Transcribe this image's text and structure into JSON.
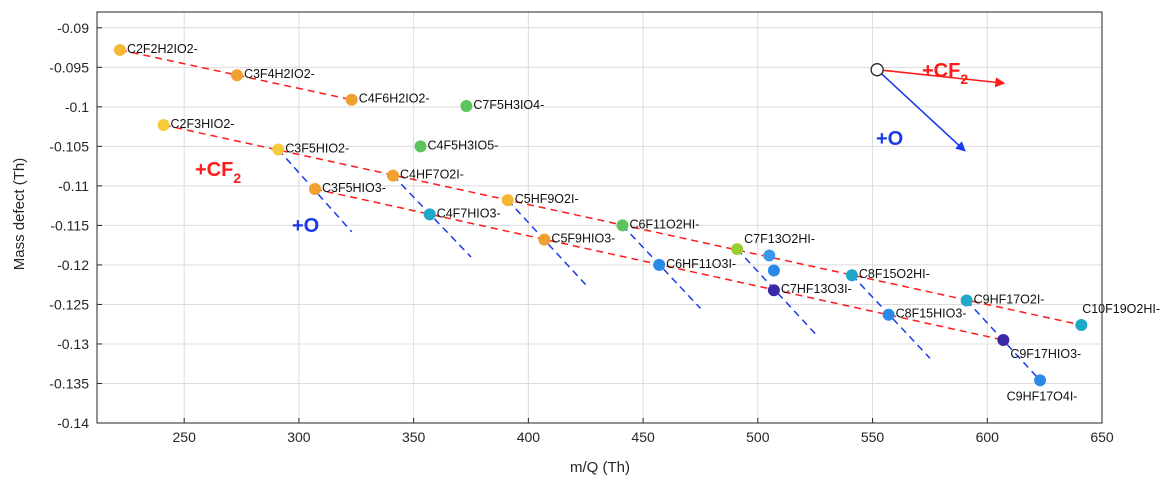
{
  "chart_data": {
    "type": "scatter",
    "xlabel": "m/Q (Th)",
    "ylabel": "Mass defect (Th)",
    "xlim": [
      212,
      650
    ],
    "ylim": [
      -0.14,
      -0.088
    ],
    "xticks": [
      250,
      300,
      350,
      400,
      450,
      500,
      550,
      600,
      650
    ],
    "yticks": [
      -0.09,
      -0.095,
      -0.1,
      -0.105,
      -0.11,
      -0.115,
      -0.12,
      -0.125,
      -0.13,
      -0.135,
      -0.14
    ],
    "ytick_labels": [
      "-0.09",
      "-0.095",
      "-0.1",
      "-0.105",
      "-0.11",
      "-0.115",
      "-0.12",
      "-0.125",
      "-0.13",
      "-0.135",
      "-0.14"
    ],
    "grid": true,
    "points": [
      {
        "x": 222,
        "y": -0.0928,
        "label": "C2F2H2IO2-",
        "color": "#f5b833"
      },
      {
        "x": 273,
        "y": -0.096,
        "label": "C3F4H2IO2-",
        "color": "#f0a030"
      },
      {
        "x": 323,
        "y": -0.0991,
        "label": "C4F6H2IO2-",
        "color": "#f0a030"
      },
      {
        "x": 373,
        "y": -0.0999,
        "label": "C7F5H3IO4-",
        "color": "#5cc45c"
      },
      {
        "x": 241,
        "y": -0.1023,
        "label": "C2F3HIO2-",
        "color": "#f5cc3a"
      },
      {
        "x": 291,
        "y": -0.1054,
        "label": "C3F5HIO2-",
        "color": "#f5cc3a"
      },
      {
        "x": 353,
        "y": -0.105,
        "label": "C4F5H3IO5-",
        "color": "#5cc45c"
      },
      {
        "x": 341,
        "y": -0.1087,
        "label": "C4HF7O2I-",
        "color": "#f0a030"
      },
      {
        "x": 307,
        "y": -0.1104,
        "label": "C3F5HIO3-",
        "color": "#f0a030"
      },
      {
        "x": 391,
        "y": -0.1118,
        "label": "C5HF9O2I-",
        "color": "#f5b833"
      },
      {
        "x": 357,
        "y": -0.1136,
        "label": "C4F7HIO3-",
        "color": "#1fa8c8"
      },
      {
        "x": 441,
        "y": -0.115,
        "label": "C6F11O2HI-",
        "color": "#5cc45c"
      },
      {
        "x": 407,
        "y": -0.1168,
        "label": "C5F9HIO3-",
        "color": "#f0a030"
      },
      {
        "x": 491,
        "y": -0.118,
        "label": "C7F13O2HI-",
        "color": "#9acd32"
      },
      {
        "x": 505,
        "y": -0.1188,
        "label": "",
        "color": "#3a98e8"
      },
      {
        "x": 457,
        "y": -0.12,
        "label": "C6HF11O3I-",
        "color": "#2a8ae8"
      },
      {
        "x": 507,
        "y": -0.1207,
        "label": "",
        "color": "#2a8ae8"
      },
      {
        "x": 541,
        "y": -0.1213,
        "label": "C8F15O2HI-",
        "color": "#1fa8c8"
      },
      {
        "x": 507,
        "y": -0.1232,
        "label": "C7HF13O3I-",
        "color": "#3a2aa8"
      },
      {
        "x": 591,
        "y": -0.1245,
        "label": "C9HF17O2I-",
        "color": "#1fa8c8"
      },
      {
        "x": 557,
        "y": -0.1263,
        "label": "C8F15HIO3-",
        "color": "#2a8ae8"
      },
      {
        "x": 641,
        "y": -0.1276,
        "label": "C10F19O2HI-",
        "color": "#1fa8c8"
      },
      {
        "x": 607,
        "y": -0.1295,
        "label": "C9F17HIO3-",
        "color": "#3a2aa8"
      },
      {
        "x": 623,
        "y": -0.1346,
        "label": "C9HF17O4I-",
        "color": "#2a8ae8"
      }
    ],
    "cf2_lines": [
      {
        "x": [
          222,
          323
        ],
        "y": [
          -0.0928,
          -0.0991
        ]
      },
      {
        "x": [
          241,
          641
        ],
        "y": [
          -0.1023,
          -0.1276
        ]
      },
      {
        "x": [
          307,
          607
        ],
        "y": [
          -0.1104,
          -0.1295
        ]
      }
    ],
    "o_lines": [
      {
        "x": [
          291,
          323
        ],
        "y": [
          -0.1054,
          -0.1158
        ]
      },
      {
        "x": [
          341,
          375
        ],
        "y": [
          -0.1087,
          -0.119
        ]
      },
      {
        "x": [
          391,
          425
        ],
        "y": [
          -0.1118,
          -0.1225
        ]
      },
      {
        "x": [
          441,
          475
        ],
        "y": [
          -0.115,
          -0.1255
        ]
      },
      {
        "x": [
          491,
          525
        ],
        "y": [
          -0.118,
          -0.1287
        ]
      },
      {
        "x": [
          541,
          575
        ],
        "y": [
          -0.1213,
          -0.1318
        ]
      },
      {
        "x": [
          591,
          623
        ],
        "y": [
          -0.1245,
          -0.1346
        ]
      }
    ],
    "annotations": {
      "cf2_text": "+CF",
      "cf2_sub": "2",
      "o_text": "+O",
      "cf2_color": "#ff1a1a",
      "o_color": "#1a3ae8"
    },
    "legend_vector": {
      "origin": {
        "x": 552,
        "y": -0.0953
      },
      "cf2_head": {
        "x": 607,
        "y": -0.097
      },
      "o_head": {
        "x": 590,
        "y": -0.1055
      }
    }
  }
}
